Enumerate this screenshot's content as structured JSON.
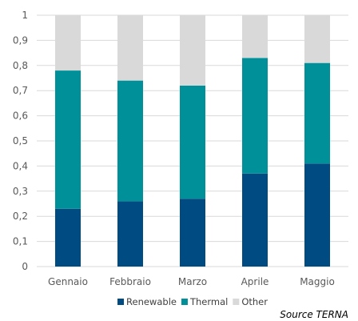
{
  "chart_data": {
    "type": "bar",
    "stacked": true,
    "categories": [
      "Gennaio",
      "Febbraio",
      "Marzo",
      "Aprile",
      "Maggio"
    ],
    "series": [
      {
        "name": "Renewable",
        "color": "#004c82",
        "values": [
          0.23,
          0.26,
          0.27,
          0.37,
          0.41
        ]
      },
      {
        "name": "Thermal",
        "color": "#00909a",
        "values": [
          0.55,
          0.48,
          0.45,
          0.46,
          0.4
        ]
      },
      {
        "name": "Other",
        "color": "#d9d9d9",
        "values": [
          0.22,
          0.26,
          0.28,
          0.17,
          0.19
        ]
      }
    ],
    "ylim": [
      0,
      1
    ],
    "yticks": [
      "0",
      "0,1",
      "0,2",
      "0,3",
      "0,4",
      "0,5",
      "0,6",
      "0,7",
      "0,8",
      "0,9",
      "1"
    ],
    "ytick_values": [
      0,
      0.1,
      0.2,
      0.3,
      0.4,
      0.5,
      0.6,
      0.7,
      0.8,
      0.9,
      1
    ],
    "grid": "horizontal",
    "grid_color": "#d9d9d9",
    "legend_position": "bottom",
    "source": "Source TERNA"
  }
}
